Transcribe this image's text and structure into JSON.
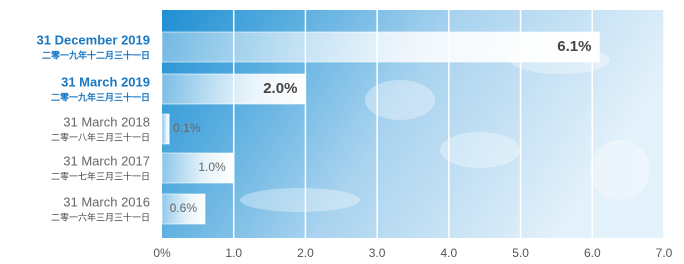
{
  "chart_data": {
    "type": "hbar",
    "categories": [
      "31 December 2019",
      "31 March 2019",
      "31 March 2018",
      "31 March 2017",
      "31 March 2016"
    ],
    "categories_zh": [
      "二零一九年十二月三十一日",
      "二零一九年三月三十一日",
      "二零一八年三月三十一日",
      "二零一七年三月三十一日",
      "二零一六年三月三十一日"
    ],
    "values": [
      6.1,
      2.0,
      0.1,
      1.0,
      0.6
    ],
    "value_labels": [
      "6.1%",
      "2.0%",
      "0.1%",
      "1.0%",
      "0.6%"
    ],
    "highlighted": [
      0,
      1
    ],
    "highlight_color": "#1a78c2",
    "color": "#ffffff",
    "xlim": [
      0,
      7
    ],
    "xticks": [
      {
        "value": 0,
        "label": "0%"
      },
      {
        "value": 1,
        "label": "1.0"
      },
      {
        "value": 2,
        "label": "2.0"
      },
      {
        "value": 3,
        "label": "3.0"
      },
      {
        "value": 4,
        "label": "4.0"
      },
      {
        "value": 5,
        "label": "5.0"
      },
      {
        "value": 6,
        "label": "6.0"
      },
      {
        "value": 7,
        "label": "7.0"
      }
    ],
    "grid": true
  }
}
